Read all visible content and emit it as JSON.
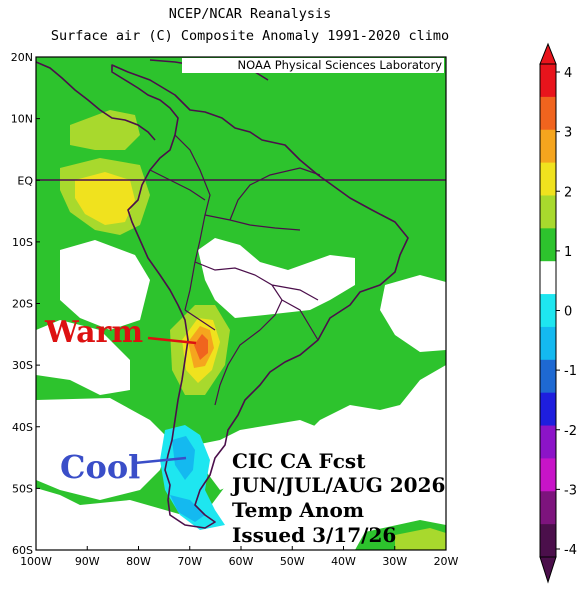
{
  "header": {
    "title_line1": "NCEP/NCAR Reanalysis",
    "title_line2": "Surface air (C) Composite Anomaly 1991-2020 climo"
  },
  "map": {
    "credit": "NOAA Physical Sciences Laboratory",
    "lat_labels": [
      "20N",
      "10N",
      "EQ",
      "10S",
      "20S",
      "30S",
      "40S",
      "50S",
      "60S"
    ],
    "lon_labels": [
      "100W",
      "90W",
      "80W",
      "70W",
      "60W",
      "50W",
      "40W",
      "30W",
      "20W"
    ],
    "extent": {
      "lon": [
        -100,
        -20
      ],
      "lat": [
        -60,
        20
      ]
    }
  },
  "annotations": {
    "warm": "Warm",
    "cool": "Cool",
    "forecast_lines": [
      "CIC CA Fcst",
      "JUN/JUL/AUG 2026",
      "Temp Anom",
      "Issued 3/17/26"
    ]
  },
  "colorbar": {
    "ticks": [
      "4",
      "3",
      "2",
      "1",
      "0",
      "-1",
      "-2",
      "-3",
      "-4"
    ],
    "colors": [
      "#e8141c",
      "#f0641e",
      "#f5a51e",
      "#f0e21e",
      "#a8d92d",
      "#2dc32d",
      "#ffffff",
      "#1ee6f0",
      "#14b9f0",
      "#1e69d2",
      "#1e1ede",
      "#8c14c8",
      "#c814c8",
      "#7d147d",
      "#4b0f4b"
    ]
  },
  "colors": {
    "green": "#2dc32d",
    "light_green": "#a8d92d",
    "yellow": "#f0e21e",
    "orange": "#f5a51e",
    "red": "#e8141c",
    "cyan": "#1ee6f0",
    "light_blue": "#14b9f0",
    "purple": "#8c14c8",
    "warm_text": "#dd1111",
    "cool_text": "#3a4ec8",
    "coast": "#4b0f4b"
  }
}
